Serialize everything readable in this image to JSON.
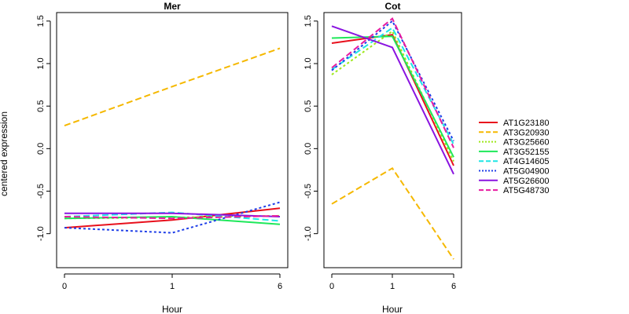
{
  "figure": {
    "ylabel": "centered expression",
    "xlabel": "Hour"
  },
  "chart_data": [
    {
      "type": "line",
      "title": "Mer",
      "xlabel": "Hour",
      "ylabel": "centered expression",
      "x": [
        "0",
        "1",
        "6"
      ],
      "ylim": [
        -1.4,
        1.6
      ],
      "yticks": [
        -1.0,
        -0.5,
        0.0,
        0.5,
        1.0,
        1.5
      ],
      "grid": false,
      "series": [
        {
          "name": "AT1G23180",
          "values": [
            -0.93,
            -0.84,
            -0.7
          ]
        },
        {
          "name": "AT3G20930",
          "values": [
            0.27,
            0.73,
            1.18
          ]
        },
        {
          "name": "AT3G25660",
          "values": [
            -0.82,
            -0.81,
            -0.79
          ]
        },
        {
          "name": "AT3G52155",
          "values": [
            -0.82,
            -0.8,
            -0.89
          ]
        },
        {
          "name": "AT4G14605",
          "values": [
            -0.8,
            -0.75,
            -0.85
          ]
        },
        {
          "name": "AT5G04900",
          "values": [
            -0.93,
            -0.99,
            -0.63
          ]
        },
        {
          "name": "AT5G26600",
          "values": [
            -0.76,
            -0.76,
            -0.8
          ]
        },
        {
          "name": "AT5G48730",
          "values": [
            -0.8,
            -0.82,
            -0.79
          ]
        }
      ]
    },
    {
      "type": "line",
      "title": "Cot",
      "xlabel": "Hour",
      "ylabel": "",
      "x": [
        "0",
        "1",
        "6"
      ],
      "ylim": [
        -1.4,
        1.6
      ],
      "yticks": [
        -1.0,
        -0.5,
        0.0,
        0.5,
        1.0,
        1.5
      ],
      "grid": false,
      "legend": "right",
      "series": [
        {
          "name": "AT1G23180",
          "values": [
            1.24,
            1.34,
            -0.2
          ]
        },
        {
          "name": "AT3G20930",
          "values": [
            -0.65,
            -0.23,
            -1.3
          ]
        },
        {
          "name": "AT3G25660",
          "values": [
            0.87,
            1.38,
            -0.15
          ]
        },
        {
          "name": "AT3G52155",
          "values": [
            1.3,
            1.32,
            -0.1
          ]
        },
        {
          "name": "AT4G14605",
          "values": [
            0.93,
            1.42,
            0.05
          ]
        },
        {
          "name": "AT5G04900",
          "values": [
            0.92,
            1.5,
            0.09
          ]
        },
        {
          "name": "AT5G26600",
          "values": [
            1.44,
            1.19,
            -0.3
          ]
        },
        {
          "name": "AT5G48730",
          "values": [
            0.95,
            1.53,
            0.01
          ]
        }
      ]
    }
  ],
  "series_styles": [
    {
      "name": "AT1G23180",
      "color": "#e8101c",
      "dash": "solid"
    },
    {
      "name": "AT3G20930",
      "color": "#f5b800",
      "dash": "dashed"
    },
    {
      "name": "AT3G25660",
      "color": "#9de81a",
      "dash": "dotted"
    },
    {
      "name": "AT3G52155",
      "color": "#1ee85a",
      "dash": "solid"
    },
    {
      "name": "AT4G14605",
      "color": "#1ee6e6",
      "dash": "dashed"
    },
    {
      "name": "AT5G04900",
      "color": "#1f3fe8",
      "dash": "dotted"
    },
    {
      "name": "AT5G26600",
      "color": "#8a14e0",
      "dash": "solid"
    },
    {
      "name": "AT5G48730",
      "color": "#e81aa0",
      "dash": "dashed"
    }
  ]
}
